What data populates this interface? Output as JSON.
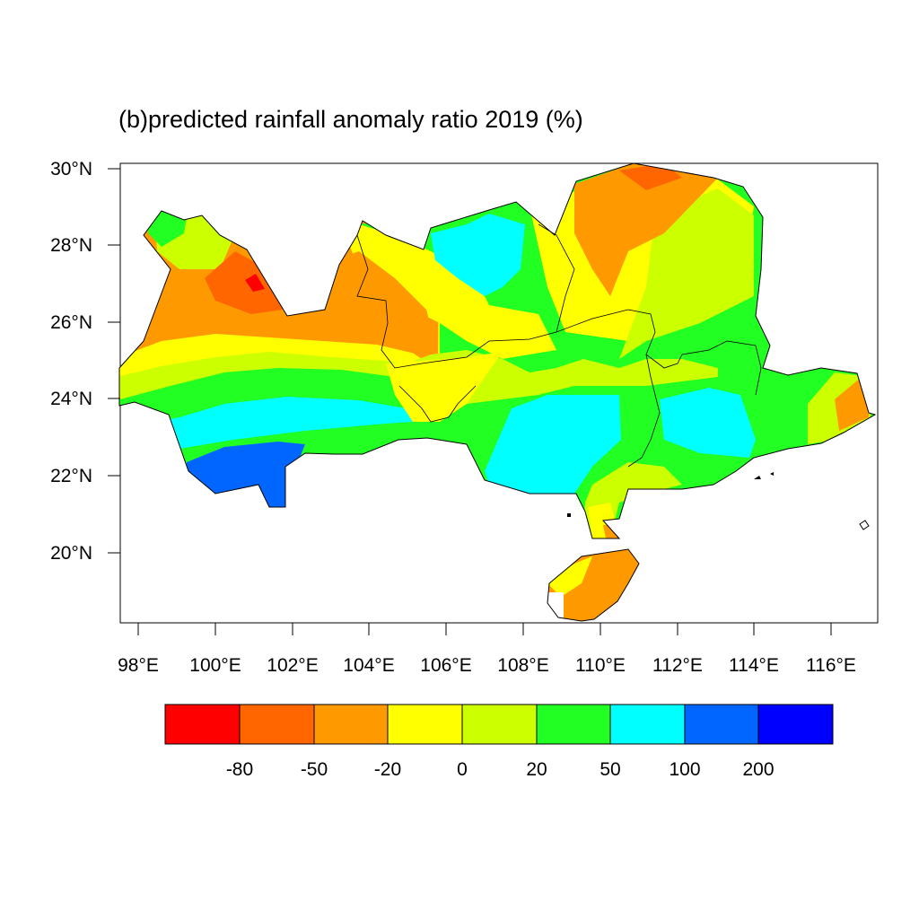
{
  "title": "(b)predicted rainfall anomaly ratio 2019 (%)",
  "map": {
    "lat_labels": [
      "30°N",
      "28°N",
      "26°N",
      "24°N",
      "22°N",
      "20°N"
    ],
    "lon_labels": [
      "98°E",
      "100°E",
      "102°E",
      "104°E",
      "106°E",
      "108°E",
      "110°E",
      "112°E",
      "114°E",
      "116°E"
    ]
  },
  "colorbar": {
    "colors": [
      "#ff0000",
      "#ff6600",
      "#ff9900",
      "#ffff00",
      "#ccff00",
      "#22ff22",
      "#00ffff",
      "#0066ff",
      "#0000ff"
    ],
    "labels": [
      "-80",
      "-50",
      "-20",
      "0",
      "20",
      "50",
      "100",
      "200"
    ]
  }
}
